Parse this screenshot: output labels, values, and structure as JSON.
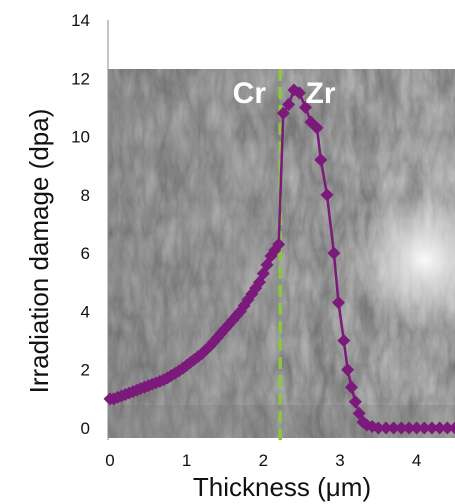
{
  "chart_data": {
    "type": "line",
    "xlabel": "Thickness (μm)",
    "ylabel": "Irradiation damage (dpa)",
    "xlim": [
      0,
      4.5
    ],
    "ylim": [
      0,
      14
    ],
    "x_ticks": [
      0,
      1,
      2,
      3,
      4
    ],
    "y_ticks": [
      0,
      2,
      4,
      6,
      8,
      10,
      12,
      14
    ],
    "grid": false,
    "background": "grayscale cross-sectional micrograph",
    "region_labels": [
      {
        "text": "Cr",
        "x": 1.6,
        "y": 11.5
      },
      {
        "text": "Zr",
        "x": 2.55,
        "y": 11.5
      }
    ],
    "interface": {
      "x": 2.22,
      "style": "dashed",
      "color": "#8dc63f"
    },
    "series": [
      {
        "color": "#7b1a7b",
        "marker": "diamond",
        "x": [
          0.0,
          0.05,
          0.1,
          0.15,
          0.2,
          0.25,
          0.3,
          0.35,
          0.4,
          0.45,
          0.5,
          0.55,
          0.6,
          0.65,
          0.7,
          0.75,
          0.8,
          0.85,
          0.9,
          0.95,
          1.0,
          1.05,
          1.1,
          1.15,
          1.2,
          1.25,
          1.3,
          1.35,
          1.4,
          1.45,
          1.5,
          1.55,
          1.6,
          1.65,
          1.7,
          1.75,
          1.8,
          1.85,
          1.9,
          1.95,
          2.0,
          2.05,
          2.1,
          2.15,
          2.2,
          2.26,
          2.33,
          2.4,
          2.47,
          2.55,
          2.62,
          2.7,
          2.75,
          2.83,
          2.92,
          2.98,
          3.05,
          3.1,
          3.15,
          3.2,
          3.25,
          3.3,
          3.35,
          3.42,
          3.5,
          3.6,
          3.7,
          3.8,
          3.9,
          4.0,
          4.1,
          4.2,
          4.3,
          4.4,
          4.5
        ],
        "values": [
          1.0,
          1.0,
          1.05,
          1.1,
          1.15,
          1.2,
          1.25,
          1.3,
          1.35,
          1.4,
          1.45,
          1.5,
          1.55,
          1.6,
          1.65,
          1.72,
          1.8,
          1.88,
          1.96,
          2.05,
          2.15,
          2.25,
          2.35,
          2.45,
          2.55,
          2.68,
          2.8,
          2.95,
          3.1,
          3.25,
          3.4,
          3.55,
          3.7,
          3.85,
          4.0,
          4.2,
          4.4,
          4.6,
          4.8,
          5.0,
          5.3,
          5.6,
          5.9,
          6.1,
          6.3,
          10.8,
          11.1,
          11.6,
          11.5,
          11.0,
          10.5,
          10.3,
          9.2,
          8.0,
          6.0,
          4.3,
          3.0,
          2.0,
          1.4,
          0.9,
          0.5,
          0.2,
          0.1,
          0.05,
          0.0,
          0.0,
          0.0,
          0.0,
          0.0,
          0.0,
          0.0,
          0.0,
          0.0,
          0.0,
          0.0
        ]
      }
    ]
  }
}
